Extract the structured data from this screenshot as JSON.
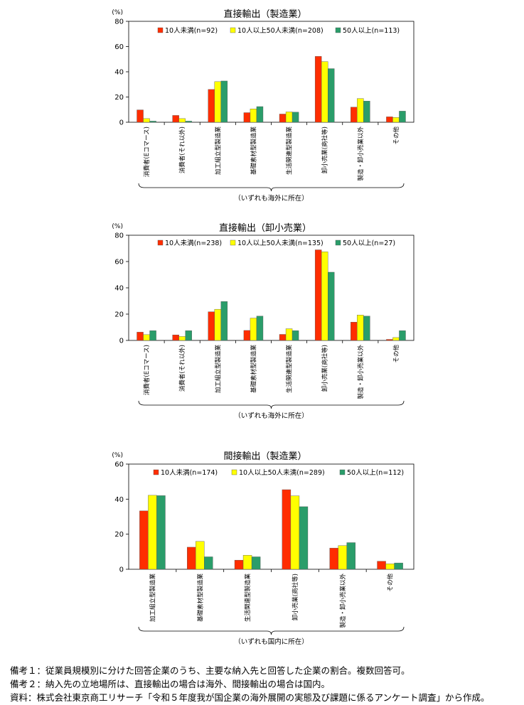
{
  "chart_data": [
    {
      "type": "bar",
      "title": "直接輸出（製造業）",
      "ylabel": "(%)",
      "ylim": [
        0,
        80
      ],
      "yticks": [
        0,
        20,
        40,
        60,
        80
      ],
      "categories": [
        "消費者(Eコマース)",
        "消費者(それ以外)",
        "加工組立型製造業",
        "基礎素材型製造業",
        "生活関連型製造業",
        "卸小売業(商社等)",
        "製造・卸小売業以外",
        "その他"
      ],
      "series": [
        {
          "name": "10人未満(n=92)",
          "color": "#ff2d00",
          "values": [
            9.8,
            5.4,
            26.0,
            7.6,
            6.5,
            52.2,
            12.0,
            4.3
          ]
        },
        {
          "name": "10人以上50人未満(n=208)",
          "color": "#ffff00",
          "values": [
            2.9,
            2.9,
            32.2,
            10.6,
            8.2,
            48.1,
            18.8,
            3.8
          ]
        },
        {
          "name": "50人以上(n=113)",
          "color": "#2a9d6a",
          "values": [
            0.9,
            0.9,
            32.7,
            12.4,
            8.0,
            42.5,
            16.8,
            8.8
          ]
        }
      ],
      "group_note": "（いずれも海外に所在）"
    },
    {
      "type": "bar",
      "title": "直接輸出（卸小売業）",
      "ylabel": "(%)",
      "ylim": [
        0,
        80
      ],
      "yticks": [
        0,
        20,
        40,
        60,
        80
      ],
      "categories": [
        "消費者(Eコマース)",
        "消費者(それ以外)",
        "加工組立型製造業",
        "基礎素材型製造業",
        "生活関連型製造業",
        "卸小売業(商社等)",
        "製造・卸小売業以外",
        "その他"
      ],
      "series": [
        {
          "name": "10人未満(n=238)",
          "color": "#ff2d00",
          "values": [
            6.3,
            4.2,
            21.8,
            7.6,
            4.6,
            68.9,
            13.9,
            0.8
          ]
        },
        {
          "name": "10人以上50人未満(n=135)",
          "color": "#ffff00",
          "values": [
            4.4,
            3.0,
            23.7,
            17.0,
            8.9,
            67.4,
            19.3,
            2.2
          ]
        },
        {
          "name": "50人以上(n=27)",
          "color": "#2a9d6a",
          "values": [
            7.4,
            7.4,
            29.6,
            18.5,
            7.4,
            51.9,
            18.5,
            7.4
          ]
        }
      ],
      "group_note": "（いずれも海外に所在）"
    },
    {
      "type": "bar",
      "title": "間接輸出（製造業）",
      "ylabel": "(%)",
      "ylim": [
        0,
        60
      ],
      "yticks": [
        0,
        20,
        40,
        60
      ],
      "categories": [
        "加工組立型製造業",
        "基礎素材型製造業",
        "生活関連型製造業",
        "卸小売業(商社等)",
        "製造・卸小売業以外",
        "その他"
      ],
      "series": [
        {
          "name": "10人未満(n=174)",
          "color": "#ff2d00",
          "values": [
            33.3,
            12.6,
            5.2,
            45.4,
            12.1,
            4.6
          ]
        },
        {
          "name": "10人以上50人未満(n=289)",
          "color": "#ffff00",
          "values": [
            42.2,
            15.9,
            8.0,
            41.9,
            13.5,
            3.1
          ]
        },
        {
          "name": "50人以上(n=112)",
          "color": "#2a9d6a",
          "values": [
            42.0,
            7.1,
            7.1,
            35.7,
            15.2,
            3.6
          ]
        }
      ],
      "group_note": "（いずれも国内に所在）"
    }
  ],
  "notes": [
    "備考１：従業員規模別に分けた回答企業のうち、主要な納入先と回答した企業の割合。複数回答可。",
    "備考２：納入先の立地場所は、直接輸出の場合は海外、間接輸出の場合は国内。",
    "資料：株式会社東京商工リサーチ「令和５年度我が国企業の海外展開の実態及び課題に係るアンケート調査」から作成。"
  ]
}
